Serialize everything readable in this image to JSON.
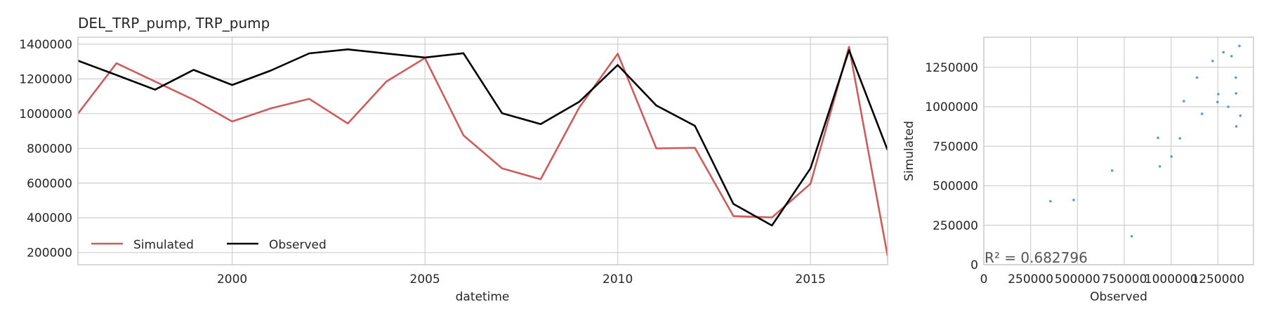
{
  "chart_data": [
    {
      "type": "line",
      "title": "DEL_TRP_pump, TRP_pump",
      "xlabel": "datetime",
      "ylabel": "",
      "xlim": [
        1996,
        2017
      ],
      "ylim": [
        130000,
        1440000
      ],
      "x_ticks": [
        2000,
        2005,
        2010,
        2015
      ],
      "y_ticks": [
        200000,
        400000,
        600000,
        800000,
        1000000,
        1200000,
        1400000
      ],
      "grid": true,
      "legend": "lower-left",
      "x": [
        1996,
        1997,
        1998,
        1999,
        2000,
        2001,
        2002,
        2003,
        2004,
        2005,
        2006,
        2007,
        2008,
        2009,
        2010,
        2011,
        2012,
        2013,
        2014,
        2015,
        2016,
        2017
      ],
      "series": [
        {
          "name": "Simulated",
          "color": "#cd5c5c",
          "values": [
            1000000,
            1290000,
            1185000,
            1080000,
            955000,
            1030000,
            1085000,
            943000,
            1185000,
            1320000,
            875000,
            685000,
            622000,
            1035000,
            1345000,
            800000,
            803000,
            410000,
            402000,
            596000,
            1385000,
            180000
          ]
        },
        {
          "name": "Observed",
          "color": "#000000",
          "values": [
            1305000,
            1222000,
            1138000,
            1252000,
            1165000,
            1248000,
            1347000,
            1370000,
            1346000,
            1323000,
            1348000,
            1002000,
            940000,
            1068000,
            1280000,
            1047000,
            930000,
            480000,
            356000,
            685000,
            1365000,
            790000
          ]
        }
      ]
    },
    {
      "type": "scatter",
      "xlabel": "Observed",
      "ylabel": "Simulated",
      "xlim": [
        0,
        1440000
      ],
      "ylim": [
        0,
        1440000
      ],
      "x_ticks": [
        0,
        250000,
        500000,
        750000,
        1000000,
        1250000
      ],
      "y_ticks": [
        0,
        250000,
        500000,
        750000,
        1000000,
        1250000
      ],
      "x_tick_labels": [
        "0",
        "250000",
        "500000",
        "750000",
        "1000000",
        "1250000"
      ],
      "y_tick_labels": [
        "0",
        "250000",
        "500000",
        "750000",
        "1000000",
        "1250000"
      ],
      "grid": true,
      "point_color": "#5b9bd5",
      "annotation": "R² = 0.682796",
      "points": [
        [
          356000,
          402000
        ],
        [
          480000,
          410000
        ],
        [
          685000,
          596000
        ],
        [
          790000,
          180000
        ],
        [
          930000,
          803000
        ],
        [
          940000,
          622000
        ],
        [
          1002000,
          685000
        ],
        [
          1047000,
          800000
        ],
        [
          1068000,
          1035000
        ],
        [
          1138000,
          1185000
        ],
        [
          1165000,
          955000
        ],
        [
          1222000,
          1290000
        ],
        [
          1248000,
          1030000
        ],
        [
          1252000,
          1080000
        ],
        [
          1280000,
          1345000
        ],
        [
          1305000,
          1000000
        ],
        [
          1323000,
          1320000
        ],
        [
          1346000,
          1185000
        ],
        [
          1347000,
          1085000
        ],
        [
          1348000,
          875000
        ],
        [
          1365000,
          1385000
        ],
        [
          1370000,
          943000
        ]
      ]
    }
  ]
}
